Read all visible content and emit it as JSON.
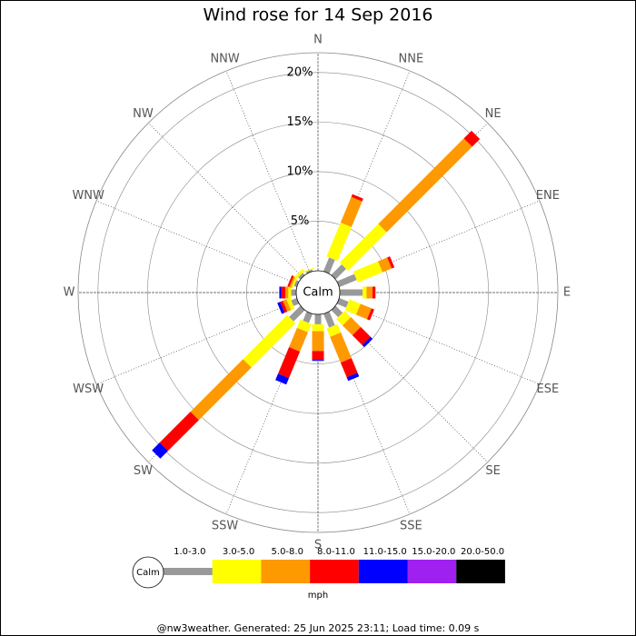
{
  "chart_data": {
    "type": "wind-rose",
    "title": "Wind rose for 14 Sep 2016",
    "directions": [
      "N",
      "NNE",
      "NE",
      "ENE",
      "E",
      "ESE",
      "SE",
      "SSE",
      "S",
      "SSW",
      "SW",
      "WSW",
      "W",
      "WNW",
      "NW",
      "NNW"
    ],
    "rlim": [
      0,
      22
    ],
    "rticks": [
      {
        "value": 5,
        "label": "5%"
      },
      {
        "value": 10,
        "label": "10%"
      },
      {
        "value": 15,
        "label": "15%"
      },
      {
        "value": 20,
        "label": "20%"
      }
    ],
    "center_label": "Calm",
    "unit": "mph",
    "series": [
      {
        "name": "1.0-3.0",
        "color": "#999999",
        "values": [
          0,
          1.5,
          1.5,
          1.9,
          2.3,
          1.0,
          1.0,
          1.5,
          1.0,
          1.0,
          1.6,
          0.6,
          0.5,
          0.3,
          0.3,
          0.2
        ]
      },
      {
        "name": "3.0-5.0",
        "color": "#ffff00",
        "values": [
          0,
          3.7,
          5.5,
          2.7,
          0.4,
          1.2,
          0.9,
          0.9,
          0.7,
          0.9,
          6.3,
          0.4,
          0.3,
          0.2,
          0.3,
          0.1
        ]
      },
      {
        "name": "5.0-8.0",
        "color": "#ff9900",
        "values": [
          0,
          2.8,
          12.2,
          1.0,
          0.6,
          1.2,
          1.4,
          2.8,
          2.0,
          2.1,
          7.5,
          0.4,
          0.3,
          0.2,
          0,
          0
        ]
      },
      {
        "name": "8.0-11.0",
        "color": "#ff0000",
        "values": [
          0,
          0.3,
          1.1,
          0.3,
          0.3,
          0.3,
          1.4,
          1.6,
          0.9,
          2.9,
          4.4,
          0.3,
          0.4,
          0.2,
          0,
          0
        ]
      },
      {
        "name": "11.0-15.0",
        "color": "#0000ff",
        "values": [
          0,
          0,
          0,
          0,
          0,
          0,
          0.3,
          0.4,
          0.1,
          0.7,
          1.1,
          0.3,
          0.2,
          0,
          0,
          0
        ]
      },
      {
        "name": "15.0-20.0",
        "color": "#a020f0",
        "values": [
          0,
          0,
          0,
          0,
          0,
          0,
          0,
          0,
          0,
          0,
          0,
          0,
          0,
          0,
          0,
          0
        ]
      },
      {
        "name": "20.0-50.0",
        "color": "#000000",
        "values": [
          0,
          0,
          0,
          0,
          0,
          0,
          0,
          0,
          0,
          0,
          0,
          0,
          0,
          0,
          0,
          0
        ]
      }
    ]
  },
  "footer": "@nw3weather. Generated: 25 Jun 2025 23:11; Load time: 0.09 s"
}
